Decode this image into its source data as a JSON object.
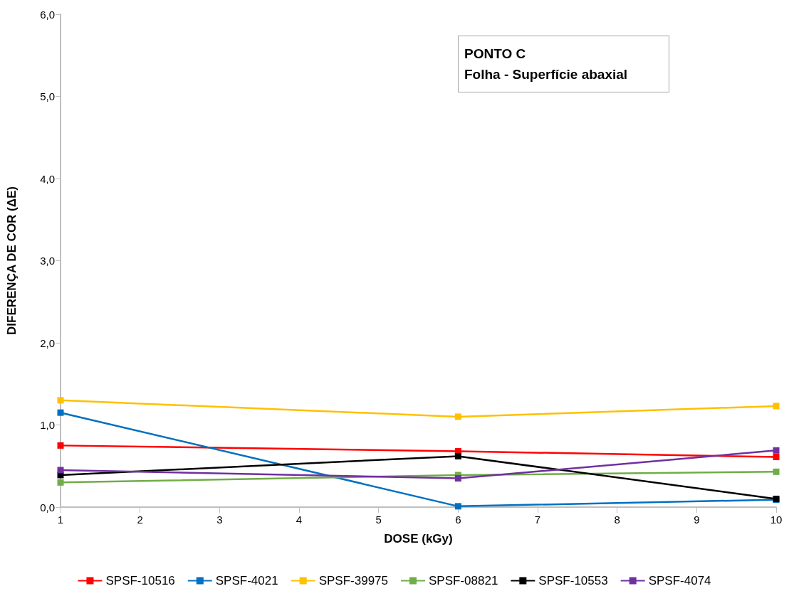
{
  "chart_data": {
    "type": "line",
    "xlabel": "DOSE (kGy)",
    "ylabel": "DIFERENÇA DE COR (ΔE)",
    "annotations": [
      "PONTO C",
      "Folha - Superfície abaxial"
    ],
    "x": [
      1,
      6,
      10
    ],
    "xlim": [
      1,
      10
    ],
    "xticks": [
      1,
      2,
      3,
      4,
      5,
      6,
      7,
      8,
      9,
      10
    ],
    "ylim": [
      0,
      6
    ],
    "yticks": [
      {
        "value": 0,
        "label": "0,0"
      },
      {
        "value": 1,
        "label": "1,0"
      },
      {
        "value": 2,
        "label": "2,0"
      },
      {
        "value": 3,
        "label": "3,0"
      },
      {
        "value": 4,
        "label": "4,0"
      },
      {
        "value": 5,
        "label": "5,0"
      },
      {
        "value": 6,
        "label": "6,0"
      }
    ],
    "grid": false,
    "legend": "bottom",
    "marker": "square",
    "line_style": "solid",
    "series": [
      {
        "name": "SPSF-10516",
        "color": "#ff0000",
        "values": [
          0.75,
          0.68,
          0.61
        ]
      },
      {
        "name": "SPSF-4021",
        "color": "#0070c0",
        "values": [
          1.15,
          0.01,
          0.09
        ]
      },
      {
        "name": "SPSF-39975",
        "color": "#ffc000",
        "values": [
          1.3,
          1.1,
          1.23
        ]
      },
      {
        "name": "SPSF-08821",
        "color": "#70ad47",
        "values": [
          0.3,
          0.39,
          0.43
        ]
      },
      {
        "name": "SPSF-10553",
        "color": "#000000",
        "values": [
          0.39,
          0.62,
          0.1
        ]
      },
      {
        "name": "SPSF-4074",
        "color": "#7030a0",
        "values": [
          0.45,
          0.35,
          0.69
        ]
      }
    ]
  }
}
